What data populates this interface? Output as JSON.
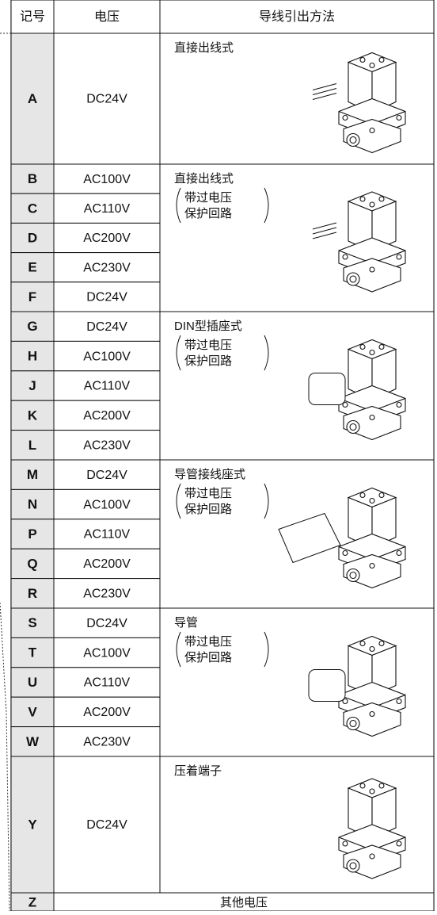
{
  "header": {
    "code": "记号",
    "voltage": "电压",
    "method": "导线引出方法"
  },
  "groups": [
    {
      "rows": [
        {
          "code": "A",
          "voltage": "DC24V"
        }
      ],
      "method": "直接出线式"
    },
    {
      "rows": [
        {
          "code": "B",
          "voltage": "AC100V"
        },
        {
          "code": "C",
          "voltage": "AC110V"
        },
        {
          "code": "D",
          "voltage": "AC200V"
        },
        {
          "code": "E",
          "voltage": "AC230V"
        },
        {
          "code": "F",
          "voltage": "DC24V"
        }
      ],
      "method": "直接出线式",
      "note": [
        "带过电压",
        "保护回路"
      ]
    },
    {
      "rows": [
        {
          "code": "G",
          "voltage": "DC24V"
        },
        {
          "code": "H",
          "voltage": "AC100V"
        },
        {
          "code": "J",
          "voltage": "AC110V"
        },
        {
          "code": "K",
          "voltage": "AC200V"
        },
        {
          "code": "L",
          "voltage": "AC230V"
        }
      ],
      "method": "DIN型插座式",
      "note": [
        "带过电压",
        "保护回路"
      ]
    },
    {
      "rows": [
        {
          "code": "M",
          "voltage": "DC24V"
        },
        {
          "code": "N",
          "voltage": "AC100V"
        },
        {
          "code": "P",
          "voltage": "AC110V"
        },
        {
          "code": "Q",
          "voltage": "AC200V"
        },
        {
          "code": "R",
          "voltage": "AC230V"
        }
      ],
      "method": "导管接线座式",
      "note": [
        "带过电压",
        "保护回路"
      ]
    },
    {
      "rows": [
        {
          "code": "S",
          "voltage": "DC24V"
        },
        {
          "code": "T",
          "voltage": "AC100V"
        },
        {
          "code": "U",
          "voltage": "AC110V"
        },
        {
          "code": "V",
          "voltage": "AC200V"
        },
        {
          "code": "W",
          "voltage": "AC230V"
        }
      ],
      "method": "导管",
      "note": [
        "带过电压",
        "保护回路"
      ]
    },
    {
      "rows": [
        {
          "code": "Y",
          "voltage": "DC24V"
        }
      ],
      "method": "压着端子"
    }
  ],
  "other": {
    "code": "Z",
    "text": "其他电压"
  }
}
